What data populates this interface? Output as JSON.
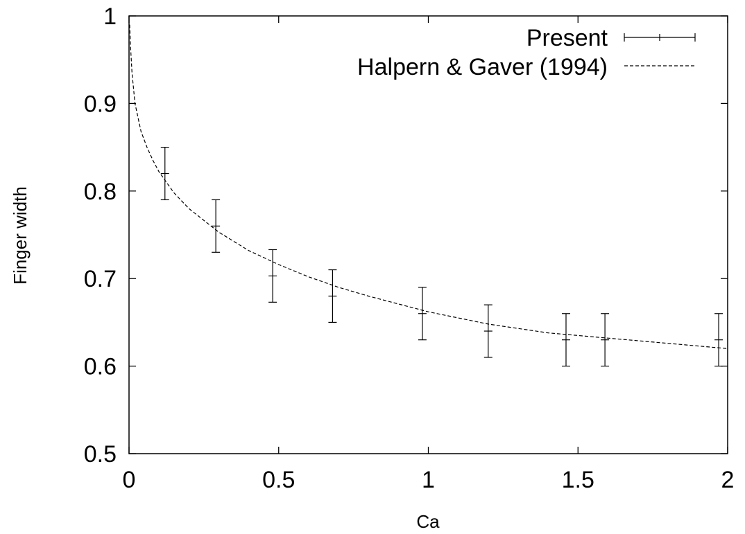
{
  "chart_data": {
    "type": "line",
    "title": "",
    "xlabel": "Ca",
    "ylabel": "Finger width",
    "xlim": [
      0,
      2
    ],
    "ylim": [
      0.5,
      1
    ],
    "x_ticks": [
      {
        "value": 0,
        "label": "0"
      },
      {
        "value": 0.5,
        "label": "0.5"
      },
      {
        "value": 1,
        "label": "1"
      },
      {
        "value": 1.5,
        "label": "1.5"
      },
      {
        "value": 2,
        "label": "2"
      }
    ],
    "y_ticks": [
      {
        "value": 0.5,
        "label": "0.5"
      },
      {
        "value": 0.6,
        "label": "0.6"
      },
      {
        "value": 0.7,
        "label": "0.7"
      },
      {
        "value": 0.8,
        "label": "0.8"
      },
      {
        "value": 0.9,
        "label": "0.9"
      },
      {
        "value": 1,
        "label": "1"
      }
    ],
    "grid": false,
    "legend_position": "top-right",
    "series": [
      {
        "name": "Present",
        "style": "errorbar",
        "color": "#000000",
        "points": [
          {
            "x": 0.12,
            "y": 0.82,
            "ylow": 0.79,
            "yhigh": 0.85
          },
          {
            "x": 0.29,
            "y": 0.76,
            "ylow": 0.73,
            "yhigh": 0.79
          },
          {
            "x": 0.48,
            "y": 0.703,
            "ylow": 0.673,
            "yhigh": 0.733
          },
          {
            "x": 0.68,
            "y": 0.68,
            "ylow": 0.65,
            "yhigh": 0.71
          },
          {
            "x": 0.98,
            "y": 0.66,
            "ylow": 0.63,
            "yhigh": 0.69
          },
          {
            "x": 1.2,
            "y": 0.64,
            "ylow": 0.61,
            "yhigh": 0.67
          },
          {
            "x": 1.46,
            "y": 0.63,
            "ylow": 0.6,
            "yhigh": 0.66
          },
          {
            "x": 1.59,
            "y": 0.63,
            "ylow": 0.6,
            "yhigh": 0.66
          },
          {
            "x": 1.97,
            "y": 0.63,
            "ylow": 0.6,
            "yhigh": 0.66
          }
        ]
      },
      {
        "name": "Halpern & Gaver (1994)",
        "style": "dashed",
        "color": "#000000",
        "x": [
          0.002,
          0.005,
          0.01,
          0.02,
          0.04,
          0.06,
          0.08,
          0.1,
          0.15,
          0.2,
          0.3,
          0.4,
          0.5,
          0.6,
          0.7,
          0.8,
          0.9,
          1.0,
          1.2,
          1.4,
          1.6,
          1.8,
          2.0
        ],
        "y": [
          0.99,
          0.965,
          0.935,
          0.9,
          0.868,
          0.85,
          0.835,
          0.822,
          0.798,
          0.78,
          0.753,
          0.732,
          0.716,
          0.702,
          0.69,
          0.68,
          0.671,
          0.662,
          0.648,
          0.638,
          0.632,
          0.626,
          0.62
        ]
      }
    ]
  }
}
